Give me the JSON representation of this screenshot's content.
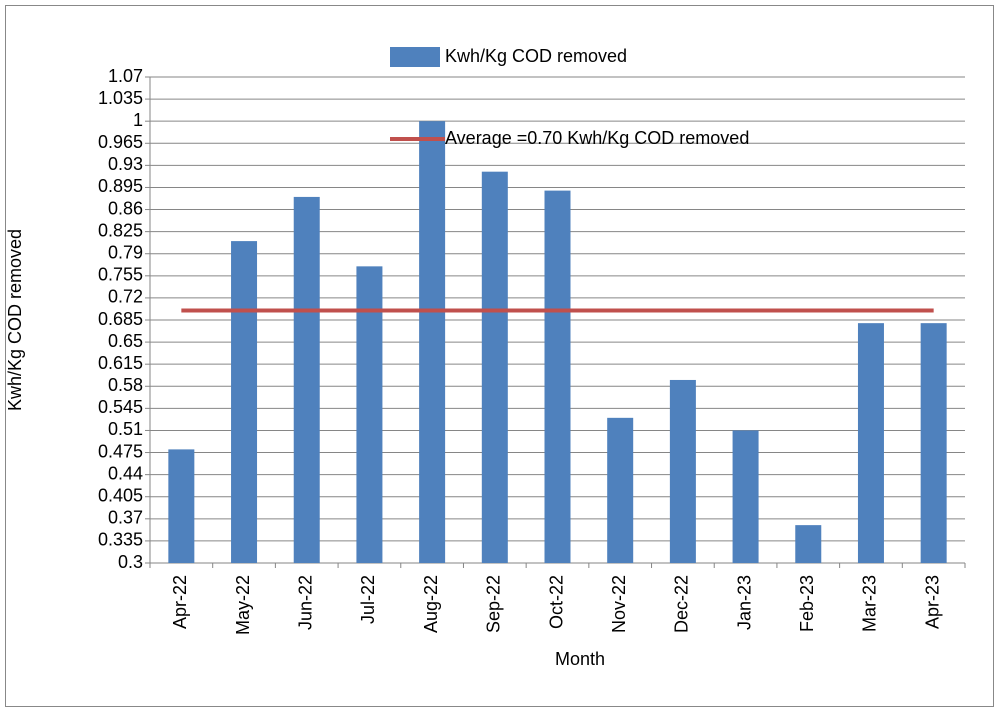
{
  "chart_data": {
    "type": "bar",
    "x_label": "Month",
    "y_label": "Kwh/Kg COD removed",
    "categories": [
      "Apr-22",
      "May-22",
      "Jun-22",
      "Jul-22",
      "Aug-22",
      "Sep-22",
      "Oct-22",
      "Nov-22",
      "Dec-22",
      "Jan-23",
      "Feb-23",
      "Mar-23",
      "Apr-23"
    ],
    "series": [
      {
        "name": "Kwh/Kg COD removed",
        "type": "bar",
        "color": "#4f81bd",
        "values": [
          0.48,
          0.81,
          0.88,
          0.77,
          1.0,
          0.92,
          0.89,
          0.53,
          0.59,
          0.51,
          0.36,
          0.68,
          0.68
        ]
      },
      {
        "name": "Average =0.70 Kwh/Kg COD removed",
        "type": "line",
        "color": "#c0504d",
        "values": [
          0.7,
          0.7,
          0.7,
          0.7,
          0.7,
          0.7,
          0.7,
          0.7,
          0.7,
          0.7,
          0.7,
          0.7,
          0.7
        ]
      }
    ],
    "ylim": [
      0.3,
      1.07
    ],
    "yticks": [
      0.3,
      0.335,
      0.37,
      0.405,
      0.44,
      0.475,
      0.51,
      0.545,
      0.58,
      0.615,
      0.65,
      0.685,
      0.72,
      0.755,
      0.79,
      0.825,
      0.86,
      0.895,
      0.93,
      0.965,
      1,
      1.035,
      1.07
    ],
    "grid": true
  }
}
